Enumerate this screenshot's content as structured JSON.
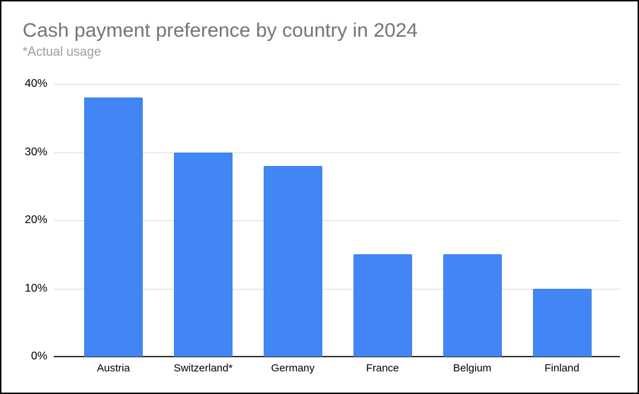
{
  "chart_data": {
    "type": "bar",
    "title": "Cash payment preference by country in 2024",
    "subtitle": "*Actual usage",
    "categories": [
      "Austria",
      "Switzerland*",
      "Germany",
      "France",
      "Belgium",
      "Finland"
    ],
    "values": [
      38,
      30,
      28,
      15,
      15,
      10
    ],
    "unit": "%",
    "xlabel": "",
    "ylabel": "",
    "ylim": [
      0,
      40
    ],
    "yticks": [
      "40%",
      "30%",
      "20%",
      "10%",
      "0%"
    ],
    "grid": true,
    "legend": "none",
    "colors": {
      "bar": "#4285f4",
      "title": "#757575",
      "subtitle": "#9e9e9e",
      "gridline": "#d9d9d9",
      "axis_line": "#333333",
      "tick_label": "#000000",
      "frame_border": "#000000",
      "background": "#ffffff"
    }
  }
}
